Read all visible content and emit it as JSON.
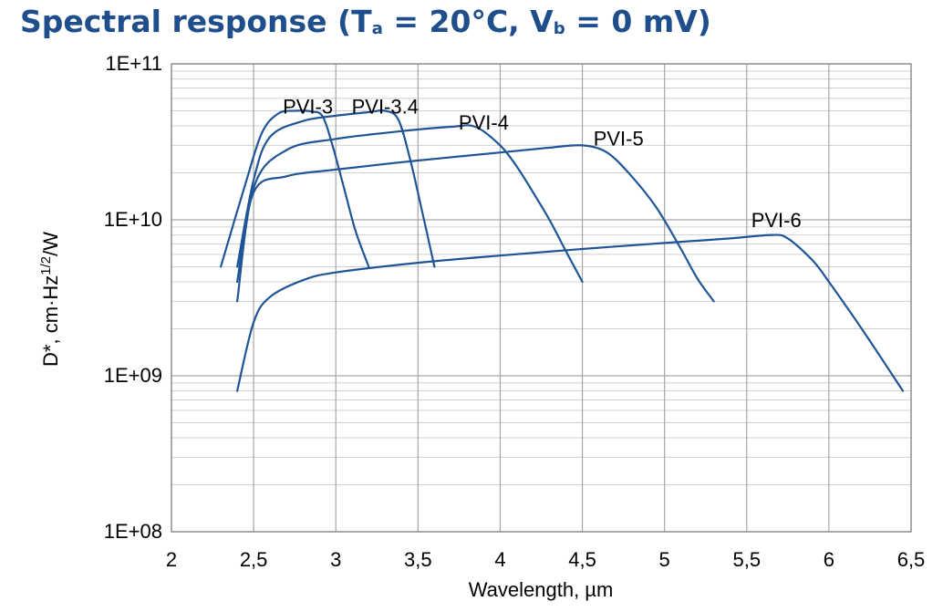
{
  "title": {
    "pre": "Spectral response (T",
    "sub1": "a",
    "mid": " = 20°C, V",
    "sub2": "b",
    "post": " = 0 mV)"
  },
  "colors": {
    "title": "#1f4e8c",
    "series": "#1f5597",
    "grid_major": "#a6a6a6",
    "grid_minor": "#d0d0d0"
  },
  "chart_data": {
    "type": "line",
    "xscale": "linear",
    "yscale": "log",
    "xlim": [
      2,
      6.5
    ],
    "ylim": [
      100000000,
      100000000000
    ],
    "xticks": [
      2,
      2.5,
      3,
      3.5,
      4,
      4.5,
      5,
      5.5,
      6,
      6.5
    ],
    "xtick_labels": [
      "2",
      "2,5",
      "3",
      "3,5",
      "4",
      "4,5",
      "5",
      "5,5",
      "6",
      "6,5"
    ],
    "yticks": [
      100000000,
      1000000000,
      10000000000,
      100000000000
    ],
    "ytick_labels": [
      "1E+08",
      "1E+09",
      "1E+10",
      "1E+11"
    ],
    "xlabel": "Wavelength, µm",
    "ylabel": {
      "pre": "D*, cm·Hz",
      "sup": "1/2",
      "post": "/W"
    },
    "grid": true,
    "legend": "inline",
    "series": [
      {
        "name": "PVI-3",
        "label_at": [
          2.83,
          48000000000
        ],
        "x": [
          2.3,
          2.45,
          2.55,
          2.65,
          2.75,
          2.85,
          2.92,
          2.98,
          3.05,
          3.12,
          3.2
        ],
        "y": [
          5000000000,
          17000000000,
          36000000000,
          48000000000,
          50000000000,
          49500000000,
          46000000000,
          30000000000,
          16000000000,
          8500000000,
          5000000000
        ]
      },
      {
        "name": "PVI-3.4",
        "label_at": [
          3.3,
          48000000000
        ],
        "x": [
          2.4,
          2.5,
          2.6,
          2.8,
          3.0,
          3.2,
          3.3,
          3.38,
          3.45,
          3.52,
          3.6
        ],
        "y": [
          5000000000,
          18000000000,
          34000000000,
          43000000000,
          46500000000,
          49000000000,
          50000000000,
          44000000000,
          25000000000,
          12000000000,
          5000000000
        ]
      },
      {
        "name": "PVI-4",
        "label_at": [
          3.9,
          38000000000
        ],
        "x": [
          2.4,
          2.5,
          2.7,
          3.0,
          3.4,
          3.7,
          3.85,
          4.0,
          4.1,
          4.2,
          4.3,
          4.4,
          4.5
        ],
        "y": [
          3000000000,
          16000000000,
          28000000000,
          33000000000,
          37000000000,
          39500000000,
          39500000000,
          30000000000,
          22000000000,
          15000000000,
          10000000000,
          6300000000,
          4000000000
        ]
      },
      {
        "name": "PVI-5",
        "label_at": [
          4.72,
          30000000000
        ],
        "x": [
          2.4,
          2.5,
          2.7,
          3.0,
          3.5,
          4.0,
          4.3,
          4.5,
          4.65,
          4.8,
          4.95,
          5.1,
          5.2,
          5.3
        ],
        "y": [
          4000000000,
          15000000000,
          19000000000,
          21000000000,
          24000000000,
          27000000000,
          29000000000,
          30000000000,
          27000000000,
          19000000000,
          12000000000,
          6500000000,
          4200000000,
          3000000000
        ]
      },
      {
        "name": "PVI-6",
        "label_at": [
          5.68,
          9000000000
        ],
        "x": [
          2.4,
          2.5,
          2.6,
          2.8,
          3.0,
          3.5,
          4.0,
          4.5,
          5.0,
          5.4,
          5.65,
          5.75,
          5.9,
          6.0,
          6.2,
          6.45
        ],
        "y": [
          800000000,
          2200000000,
          3200000000,
          4100000000,
          4600000000,
          5300000000,
          5900000000,
          6500000000,
          7100000000,
          7600000000,
          8000000000,
          7600000000,
          5500000000,
          4000000000,
          2000000000,
          800000000
        ]
      }
    ]
  }
}
